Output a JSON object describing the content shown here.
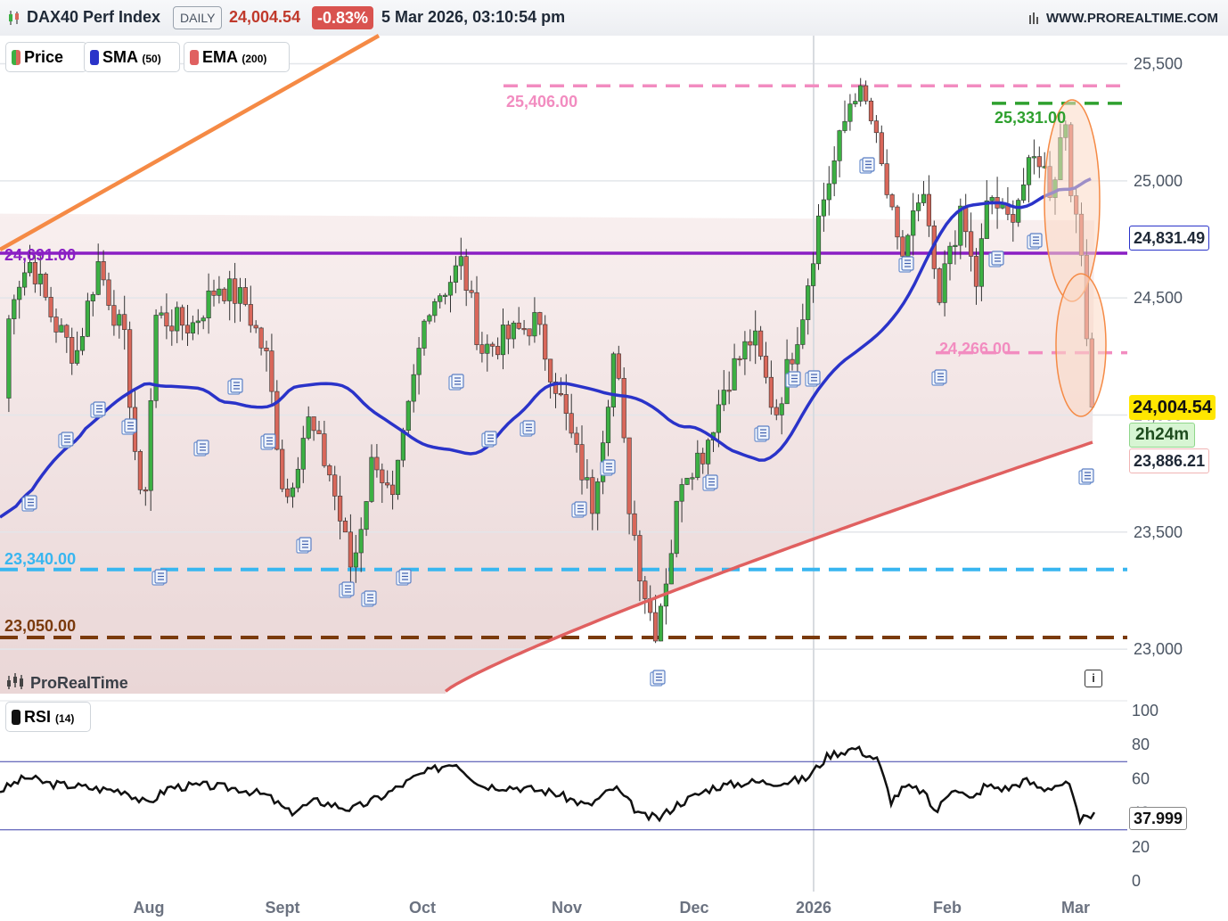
{
  "header": {
    "symbol": "DAX40 Perf Index",
    "timeframe": "DAILY",
    "last_price": "24,004.54",
    "change": "-0.83%",
    "datetime": "5 Mar 2026, 03:10:54 pm",
    "website": "WWW.PROREALTIME.COM"
  },
  "legend": {
    "price": "Price",
    "sma": "SMA",
    "sma_param": "(50)",
    "ema": "EMA",
    "ema_param": "(200)"
  },
  "watermark": "ProRealTime",
  "rsi_panel": {
    "label": "RSI",
    "param": "(14)",
    "value": "37.999"
  },
  "price_tags": {
    "sma_value": "24,831.49",
    "last_value": "24,004.54",
    "countdown": "2h24m",
    "ema_value": "23,886.21"
  },
  "level_labels": {
    "l25406": "25,406.00",
    "l25331": "25,331.00",
    "l24691": "24,691.00",
    "l24266": "24,266.00",
    "l23340": "23,340.00",
    "l23050": "23,050.00"
  },
  "colors": {
    "up_candle": "#3cb043",
    "down_candle": "#d9675a",
    "sma": "#2a33c9",
    "ema": "#e06060",
    "resistance_pink": "#f28cc0",
    "resistance_green": "#2ea02e",
    "support_purple": "#8a1fc4",
    "support_blue": "#38b6f0",
    "support_brown": "#7a3a0c",
    "trendline": "#f58a45",
    "countdown_bg": "#d7f5d3",
    "last_bg": "#ffe600"
  },
  "chart_data": [
    {
      "type": "candlestick",
      "title": "DAX40 Perf Index",
      "timeframe": "daily",
      "x_ticks": [
        "Aug",
        "Sept",
        "Oct",
        "Nov",
        "Dec",
        "2026",
        "Feb",
        "Mar"
      ],
      "y_ticks": [
        23000,
        23500,
        24000,
        24500,
        25000,
        25500
      ],
      "y_tick_labels": [
        "23,000",
        "23,500",
        "24,000",
        "24,500",
        "25,000",
        "25,500"
      ],
      "ylim": [
        22810,
        25620
      ],
      "series": [
        {
          "name": "SMA (50)",
          "last": 24831.49
        },
        {
          "name": "EMA (200)",
          "last": 23886.21
        }
      ],
      "last_price": 24004.54,
      "horizontal_levels": [
        25406,
        25331,
        24691,
        24266,
        23340,
        23050
      ],
      "countdown": "2h24m",
      "grid": "horizontal"
    },
    {
      "type": "line",
      "title": "RSI (14)",
      "y_ticks": [
        0,
        20,
        40,
        60,
        80,
        100
      ],
      "ylim": [
        0,
        100
      ],
      "reference_lines": [
        70,
        30
      ],
      "last_value": 37.999
    }
  ]
}
